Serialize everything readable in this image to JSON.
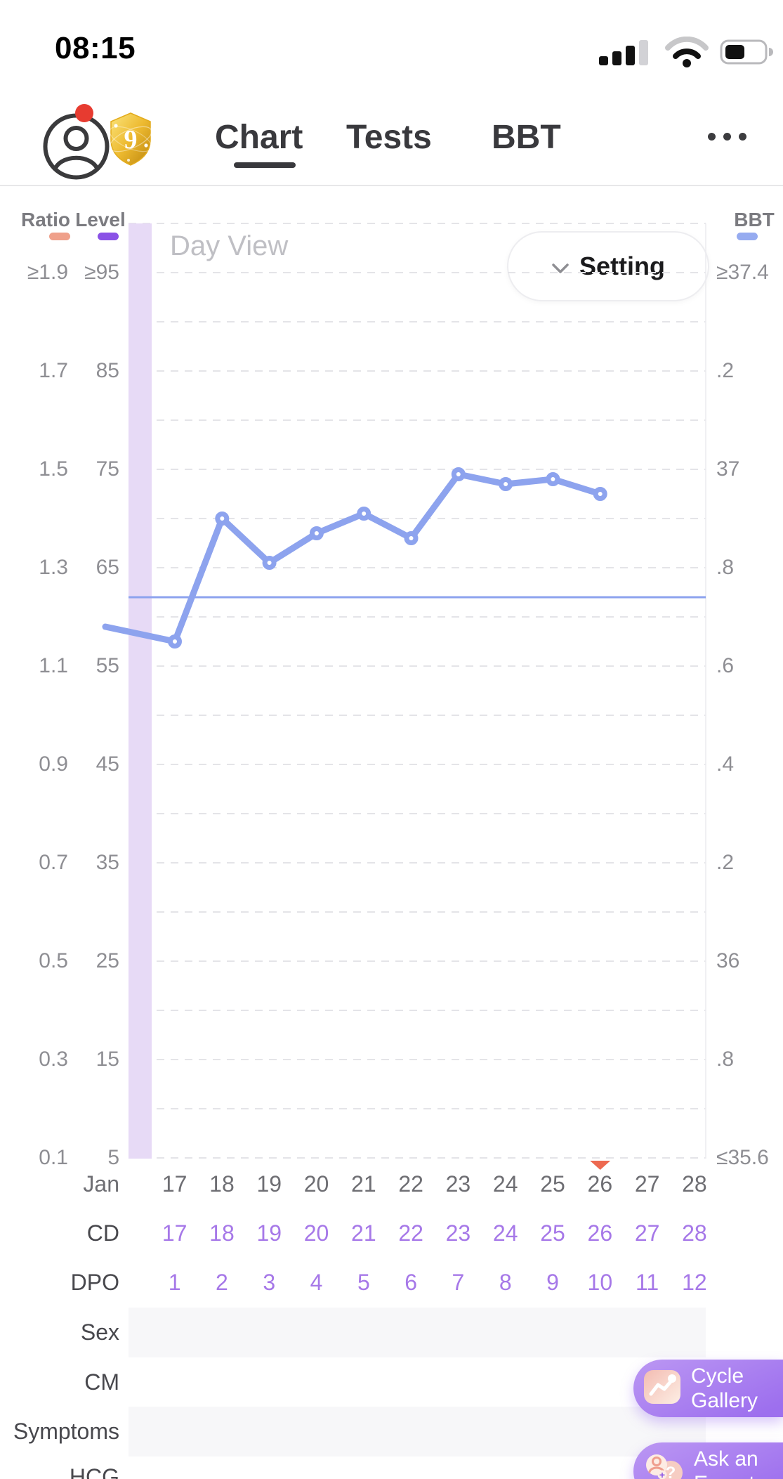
{
  "status_bar": {
    "time": "08:15"
  },
  "header": {
    "badge_number": "9",
    "tabs": [
      {
        "label": "Chart",
        "active": true
      },
      {
        "label": "Tests",
        "active": false
      },
      {
        "label": "BBT",
        "active": false
      }
    ]
  },
  "chart": {
    "view_label": "Day View",
    "setting_label": "Setting",
    "left_axis": {
      "col1_header": "Ratio",
      "col2_header": "Level",
      "rows": [
        {
          "ratio": "≥1.9",
          "level": "≥95"
        },
        {
          "ratio": "1.7",
          "level": "85"
        },
        {
          "ratio": "1.5",
          "level": "75"
        },
        {
          "ratio": "1.3",
          "level": "65"
        },
        {
          "ratio": "1.1",
          "level": "55"
        },
        {
          "ratio": "0.9",
          "level": "45"
        },
        {
          "ratio": "0.7",
          "level": "35"
        },
        {
          "ratio": "0.5",
          "level": "25"
        },
        {
          "ratio": "0.3",
          "level": "15"
        },
        {
          "ratio": "0.1",
          "level": "5"
        }
      ]
    },
    "right_axis": {
      "header": "BBT",
      "rows": [
        "≥37.4",
        ".2",
        "37",
        ".8",
        ".6",
        ".4",
        ".2",
        "36",
        ".8",
        "≤35.6"
      ]
    }
  },
  "chart_data": {
    "type": "line",
    "title": "Day View cycle chart (Ratio / Level / BBT)",
    "x_days": [
      17,
      18,
      19,
      20,
      21,
      22,
      23,
      24,
      25,
      26,
      27,
      28
    ],
    "month": "Jan",
    "series": [
      {
        "name": "BBT",
        "x": [
          17,
          18,
          19,
          20,
          21,
          22,
          23,
          24,
          25,
          26
        ],
        "values": [
          36.65,
          36.9,
          36.81,
          36.87,
          36.91,
          36.86,
          36.99,
          36.97,
          36.98,
          36.95
        ]
      }
    ],
    "lead_in_value": 36.68,
    "coverline": 36.74,
    "marker": {
      "day": 26,
      "type": "triangle-down"
    },
    "axes": {
      "ratio": {
        "range": [
          0.1,
          1.9
        ],
        "step": 0.2,
        "clamped_top": "≥1.9"
      },
      "level": {
        "range": [
          5,
          95
        ],
        "step": 10,
        "clamped_top": "≥95"
      },
      "bbt": {
        "range": [
          35.6,
          37.4
        ],
        "step": 0.2,
        "minor_step": 0.1
      }
    },
    "legend": [
      {
        "name": "Ratio",
        "color": "#efa08a"
      },
      {
        "name": "Level",
        "color": "#8a52e6"
      },
      {
        "name": "BBT",
        "color": "#96abf0"
      }
    ],
    "grid": "horizontal-dashed"
  },
  "table": {
    "jan": {
      "label": "Jan",
      "values": [
        "17",
        "18",
        "19",
        "20",
        "21",
        "22",
        "23",
        "24",
        "25",
        "26",
        "27",
        "28"
      ]
    },
    "cd": {
      "label": "CD",
      "values": [
        "17",
        "18",
        "19",
        "20",
        "21",
        "22",
        "23",
        "24",
        "25",
        "26",
        "27",
        "28"
      ]
    },
    "dpo": {
      "label": "DPO",
      "values": [
        "1",
        "2",
        "3",
        "4",
        "5",
        "6",
        "7",
        "8",
        "9",
        "10",
        "11",
        "12"
      ]
    },
    "sex": {
      "label": "Sex"
    },
    "cm": {
      "label": "CM"
    },
    "symptoms": {
      "label": "Symptoms"
    },
    "hcg": {
      "label": "HCG"
    }
  },
  "floating_buttons": {
    "cycle_gallery": {
      "line1": "Cycle",
      "line2": "Gallery"
    },
    "ask_expert": {
      "line1": "Ask an",
      "line2": "Expert"
    }
  },
  "colors": {
    "accent_purple": "#a678e8",
    "line_blue": "#8da3ee",
    "band_lavender": "#e7daf6",
    "ratio_salmon": "#efa08a",
    "level_purple": "#8a52e6",
    "bbt_blue": "#96abf0",
    "marker_red": "#ed6950",
    "button_purple_light": "#bb97f3",
    "button_purple_dark": "#9d6fee",
    "notification_red": "#e73b30",
    "tab_dark": "#39393d",
    "axis_gray": "#8e8e93",
    "number_gray": "#6e6e73",
    "label_dark": "#48484d",
    "grid_gray": "#e4e4e8",
    "row_band": "#f7f7f9",
    "day_view_gray": "#bfbfc4",
    "divider": "#e7e7e9"
  }
}
